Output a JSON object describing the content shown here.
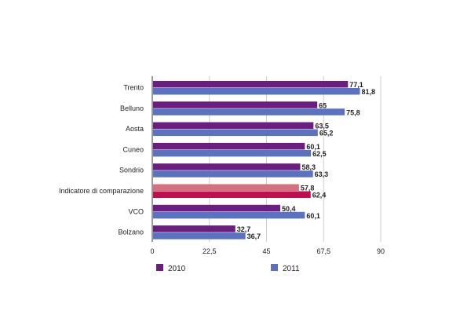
{
  "chart_data": {
    "type": "bar",
    "orientation": "horizontal",
    "categories": [
      "Trento",
      "Belluno",
      "Aosta",
      "Cuneo",
      "Sondrio",
      "Indicatore di comparazione",
      "VCO",
      "Bolzano"
    ],
    "series": [
      {
        "name": "2010",
        "values": [
          77.1,
          65,
          63.5,
          60.1,
          58.3,
          57.8,
          50.4,
          32.7
        ],
        "color": "#6b1d80"
      },
      {
        "name": "2011",
        "values": [
          81.8,
          75.8,
          65.2,
          62.5,
          63.3,
          62.4,
          60.1,
          36.7
        ],
        "color": "#5a72bf"
      }
    ],
    "highlight": {
      "category": "Indicatore di comparazione",
      "colors": [
        "#d5707f",
        "#bf0f4f"
      ]
    },
    "data_labels": [
      [
        "77,1",
        "65",
        "63,5",
        "60,1",
        "58,3",
        "57,8",
        "50,4",
        "32,7"
      ],
      [
        "81,8",
        "75,8",
        "65,2",
        "62,5",
        "63,3",
        "62,4",
        "60,1",
        "36,7"
      ]
    ],
    "xlim": [
      0,
      90
    ],
    "xticks": [
      "0",
      "22,5",
      "45",
      "67,5",
      "90"
    ],
    "xtick_values": [
      0,
      22.5,
      45,
      67.5,
      90
    ],
    "grid": true,
    "legend_position": "bottom"
  }
}
